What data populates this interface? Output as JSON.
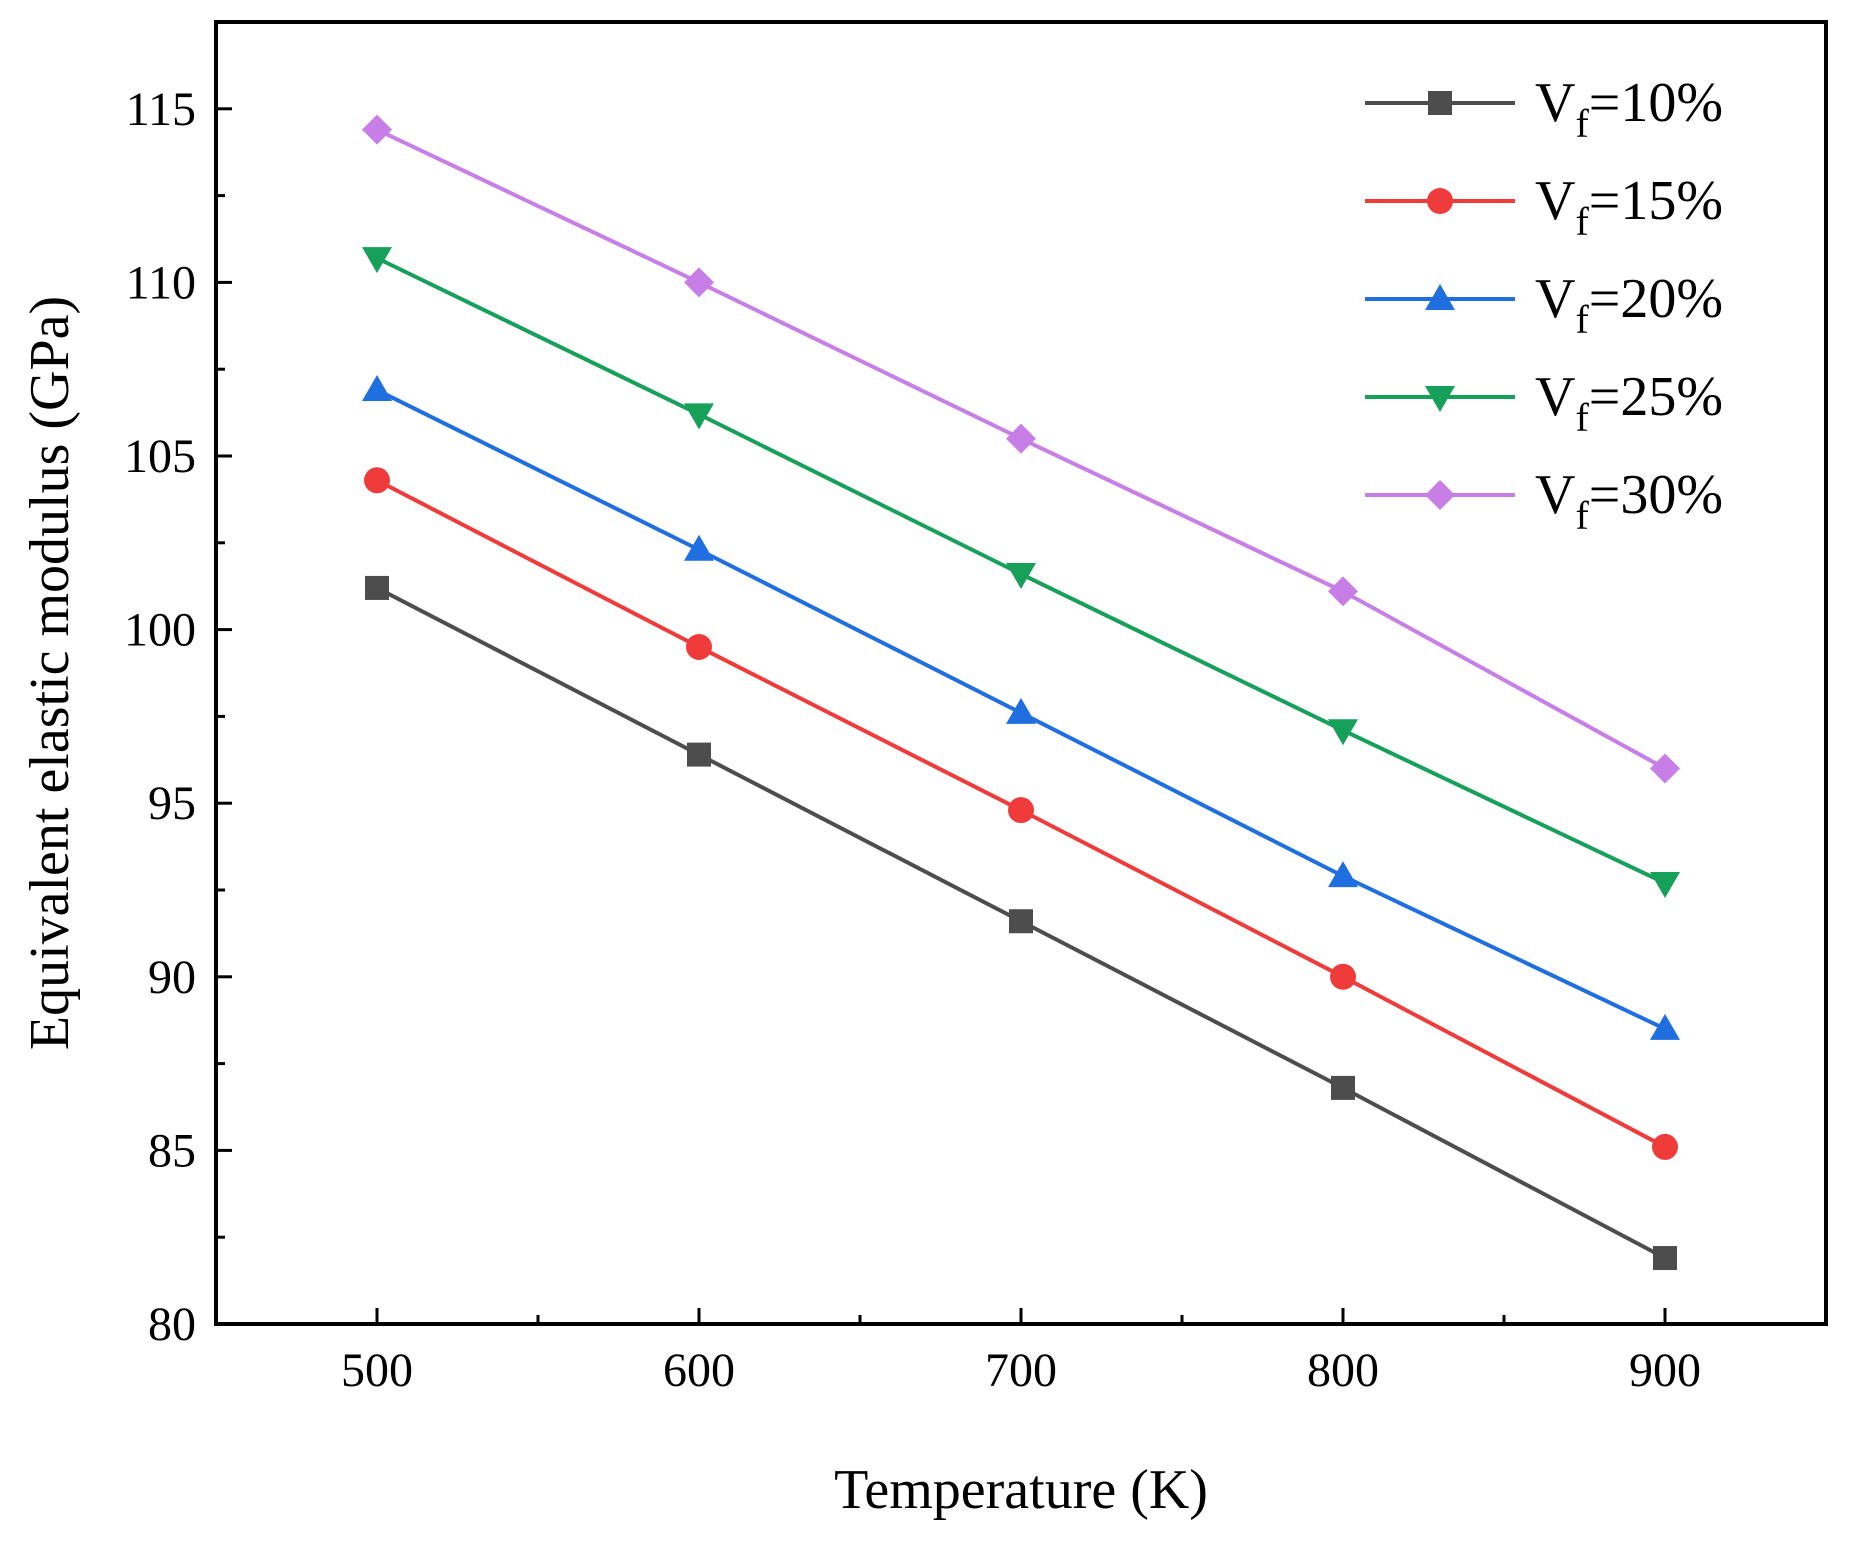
{
  "chart_data": {
    "type": "line",
    "title": "",
    "xlabel": "Temperature (K)",
    "ylabel": "Equivalent elastic modulus (GPa)",
    "x": [
      500,
      600,
      700,
      800,
      900
    ],
    "xlim": [
      450,
      950
    ],
    "ylim": [
      80,
      117.5
    ],
    "xticks": [
      500,
      600,
      700,
      800,
      900
    ],
    "yticks": [
      80,
      85,
      90,
      95,
      100,
      105,
      110,
      115
    ],
    "xtick_labels": [
      "500",
      "600",
      "700",
      "800",
      "900"
    ],
    "ytick_labels": [
      "80",
      "85",
      "90",
      "95",
      "100",
      "105",
      "110",
      "115"
    ],
    "grid": false,
    "legend_position": "top-right",
    "series": [
      {
        "name": "Vf=10%",
        "label_main": "V",
        "label_sub": "f",
        "label_tail": "=10%",
        "color": "#4d4d4d",
        "marker": "square",
        "values": [
          101.2,
          96.4,
          91.6,
          86.8,
          81.9
        ]
      },
      {
        "name": "Vf=15%",
        "label_main": "V",
        "label_sub": "f",
        "label_tail": "=15%",
        "color": "#f03b3b",
        "marker": "circle",
        "values": [
          104.3,
          99.5,
          94.8,
          90.0,
          85.1
        ]
      },
      {
        "name": "Vf=20%",
        "label_main": "V",
        "label_sub": "f",
        "label_tail": "=20%",
        "color": "#1f6fe0",
        "marker": "triangle-up",
        "values": [
          106.9,
          102.3,
          97.6,
          92.9,
          88.5
        ]
      },
      {
        "name": "Vf=25%",
        "label_main": "V",
        "label_sub": "f",
        "label_tail": "=25%",
        "color": "#17a05a",
        "marker": "triangle-down",
        "values": [
          110.7,
          106.2,
          101.6,
          97.1,
          92.7
        ]
      },
      {
        "name": "Vf=30%",
        "label_main": "V",
        "label_sub": "f",
        "label_tail": "=30%",
        "color": "#c77ee6",
        "marker": "diamond",
        "values": [
          114.4,
          110.0,
          105.5,
          101.1,
          96.0
        ]
      }
    ]
  }
}
